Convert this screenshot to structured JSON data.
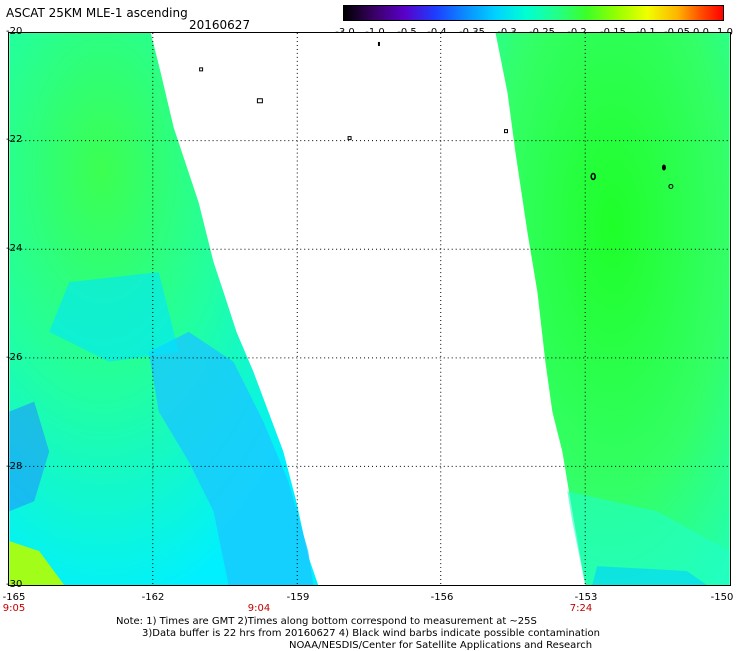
{
  "header": {
    "title": "ASCAT 25KM MLE-1 ascending",
    "date": "20160627"
  },
  "colorbar": {
    "ticks": [
      "-3.0",
      "-1.0",
      "-0.5",
      "-0.4",
      "-0.35",
      "-0.3",
      "-0.25",
      "-0.2",
      "-0.15",
      "-0.1",
      "-0.05",
      "0.0",
      "1.0"
    ],
    "colors": [
      "#000000",
      "#5a00c8",
      "#1e3cff",
      "#00d2ff",
      "#22ff8c",
      "#3cff28",
      "#f0ff00",
      "#ff0000"
    ]
  },
  "axes": {
    "y_labels": [
      "-20",
      "-22",
      "-24",
      "-26",
      "-28",
      "-30"
    ],
    "x_labels": [
      "-165",
      "-162",
      "-159",
      "-156",
      "-153",
      "-150"
    ],
    "time_labels": [
      "9:05",
      "9:04",
      "7:24"
    ]
  },
  "notes": [
    "Note: 1) Times are GMT 2)Times along bottom correspond to measurement at ~25S",
    "3)Data buffer is 22 hrs from 20160627 4) Black wind barbs indicate possible contamination",
    "NOAA/NESDIS/Center for Satellite Applications and Research"
  ]
}
